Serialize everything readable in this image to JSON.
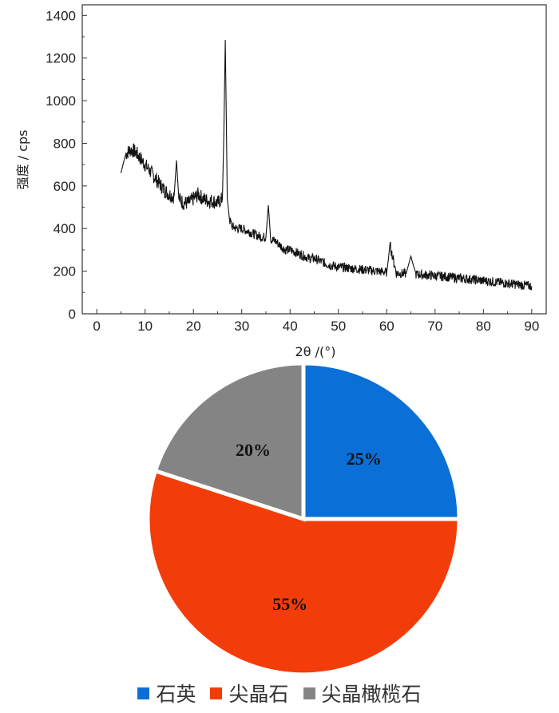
{
  "chart_data": [
    {
      "type": "line",
      "xlabel": "2θ /(°)",
      "ylabel": "强度 / cps",
      "xlim": [
        -3,
        93
      ],
      "ylim": [
        0,
        1450
      ],
      "xticks": [
        0,
        10,
        20,
        30,
        40,
        50,
        60,
        70,
        80,
        90
      ],
      "yticks": [
        0,
        200,
        400,
        600,
        800,
        1000,
        1200,
        1400
      ],
      "series": [
        {
          "x": [
            5,
            6,
            7,
            8,
            9,
            10,
            11,
            12,
            13,
            14,
            15,
            16,
            16.5,
            17,
            18,
            19,
            20,
            21,
            22,
            23,
            24,
            25,
            26,
            26.3,
            26.6,
            27,
            27.5,
            28,
            29,
            30,
            31,
            32,
            33,
            34,
            35,
            35.5,
            36,
            37,
            38,
            39,
            40,
            41,
            42,
            43,
            44,
            45,
            46,
            47,
            48,
            50,
            52,
            54,
            56,
            58,
            60,
            60.7,
            62,
            64,
            65,
            66,
            68,
            70,
            72,
            74,
            76,
            78,
            80,
            82,
            84,
            86,
            88,
            90
          ],
          "y": [
            660,
            750,
            770,
            760,
            730,
            700,
            670,
            640,
            610,
            580,
            560,
            550,
            720,
            540,
            520,
            520,
            540,
            560,
            540,
            530,
            530,
            520,
            540,
            840,
            1285,
            540,
            440,
            410,
            400,
            400,
            390,
            380,
            370,
            360,
            360,
            510,
            350,
            340,
            320,
            300,
            300,
            290,
            280,
            270,
            260,
            260,
            250,
            240,
            230,
            220,
            215,
            210,
            205,
            200,
            195,
            320,
            190,
            188,
            270,
            185,
            182,
            178,
            175,
            170,
            165,
            160,
            155,
            150,
            145,
            140,
            135,
            130
          ]
        }
      ]
    },
    {
      "type": "pie",
      "categories": [
        "石英",
        "尖晶石",
        "尖晶橄榄石"
      ],
      "values": [
        25,
        55,
        20
      ],
      "labels": [
        "25%",
        "55%",
        "20%"
      ],
      "colors": [
        "#0b6fd8",
        "#f23d0a",
        "#848484"
      ],
      "legend_position": "bottom"
    }
  ]
}
